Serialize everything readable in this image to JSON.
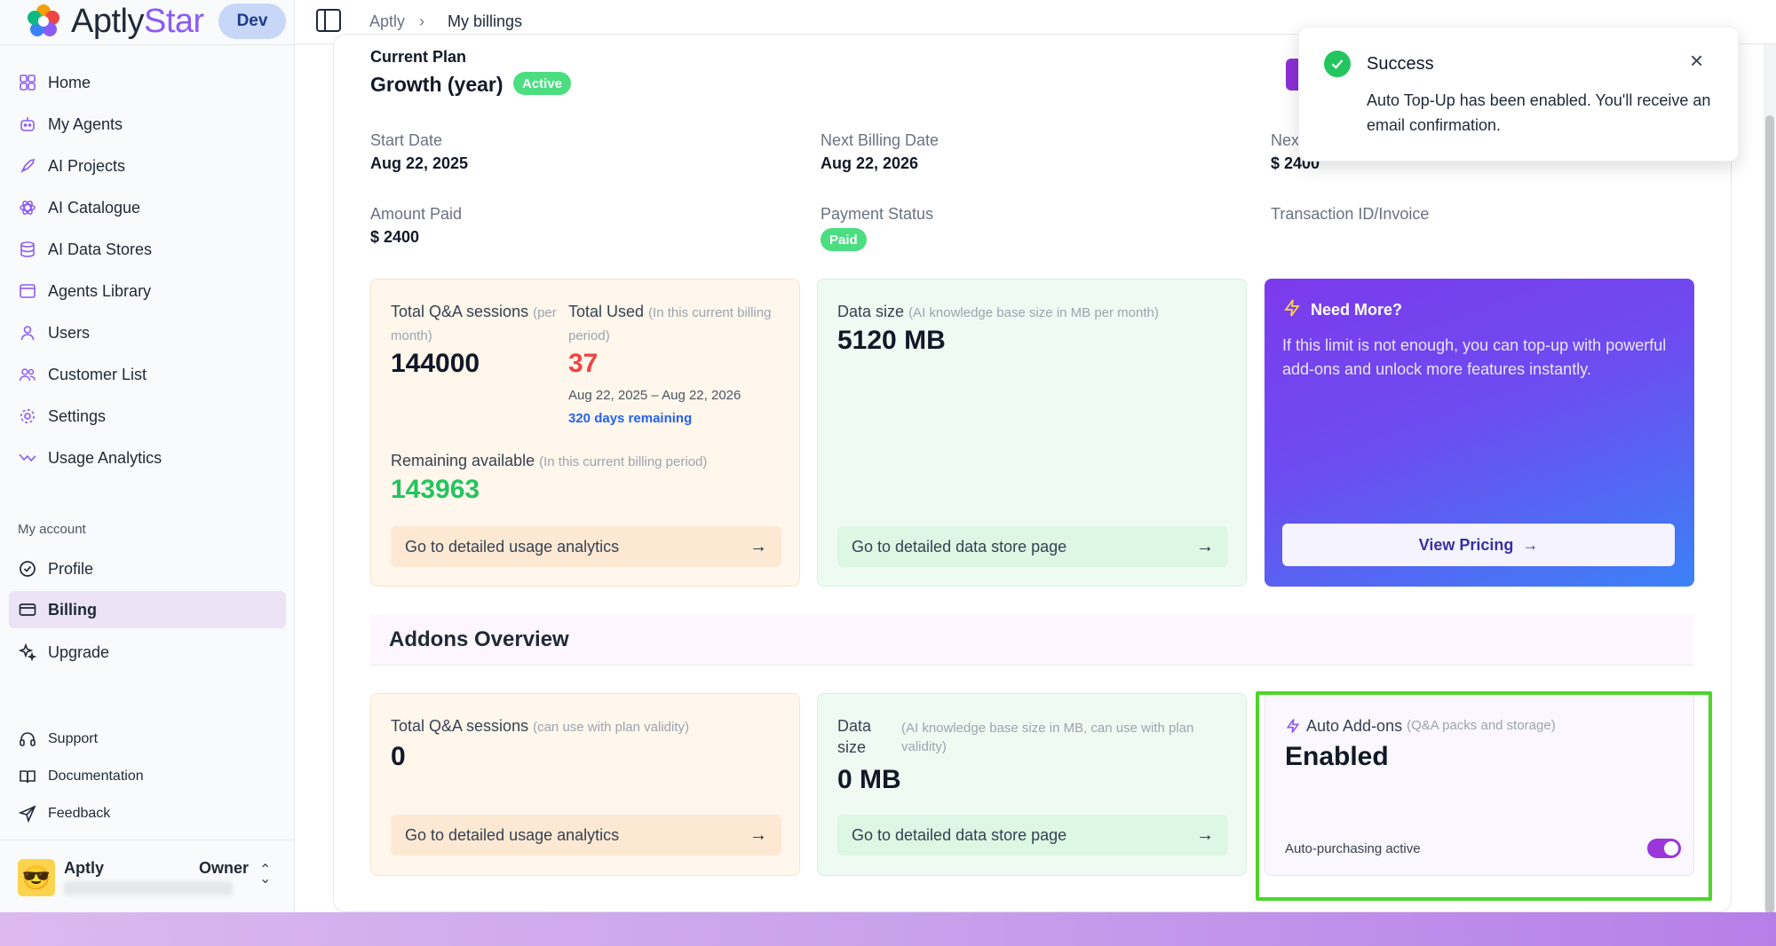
{
  "brand": {
    "name_main": "Aptly",
    "name_star": "Star",
    "env": "Dev"
  },
  "sidebar": {
    "items": [
      {
        "label": "Home",
        "icon": "home-icon"
      },
      {
        "label": "My Agents",
        "icon": "bot-icon"
      },
      {
        "label": "AI Projects",
        "icon": "rocket-icon"
      },
      {
        "label": "AI Catalogue",
        "icon": "atom-icon"
      },
      {
        "label": "AI Data Stores",
        "icon": "database-icon"
      },
      {
        "label": "Agents Library",
        "icon": "library-icon"
      },
      {
        "label": "Users",
        "icon": "user-icon"
      },
      {
        "label": "Customer List",
        "icon": "users-icon"
      },
      {
        "label": "Settings",
        "icon": "gear-icon"
      },
      {
        "label": "Usage Analytics",
        "icon": "trend-icon"
      }
    ],
    "account_label": "My account",
    "account_items": [
      {
        "label": "Profile",
        "icon": "profile-icon"
      },
      {
        "label": "Billing",
        "icon": "card-icon",
        "active": true
      },
      {
        "label": "Upgrade",
        "icon": "sparkle-icon"
      }
    ],
    "footer_items": [
      {
        "label": "Support",
        "icon": "headset-icon"
      },
      {
        "label": "Documentation",
        "icon": "book-icon"
      },
      {
        "label": "Feedback",
        "icon": "send-icon"
      }
    ],
    "user": {
      "name": "Aptly",
      "role": "Owner",
      "avatar": "😎"
    }
  },
  "breadcrumb": {
    "root": "Aptly",
    "sep": "›",
    "current": "My billings"
  },
  "plan": {
    "label": "Current Plan",
    "name": "Growth (year)",
    "status": "Active",
    "start_date_label": "Start Date",
    "start_date": "Aug 22, 2025",
    "next_billing_label": "Next Billing Date",
    "next_billing": "Aug 22, 2026",
    "next_amount_label": "Nex",
    "next_amount": "$ 2400",
    "amount_paid_label": "Amount Paid",
    "amount_paid": "$ 2400",
    "payment_status_label": "Payment Status",
    "payment_status": "Paid",
    "transaction_label": "Transaction ID/Invoice"
  },
  "usage": {
    "sessions_label": "Total Q&A sessions",
    "sessions_hint": "(per month)",
    "sessions_value": "144000",
    "used_label": "Total Used",
    "used_hint": "(In this current billing period)",
    "used_value": "37",
    "period": "Aug 22, 2025 – Aug 22, 2026",
    "days_remaining": "320 days remaining",
    "remaining_label": "Remaining available",
    "remaining_hint": "(In this current billing period)",
    "remaining_value": "143963",
    "link": "Go to detailed usage analytics"
  },
  "datastore": {
    "label": "Data size",
    "hint": "(AI knowledge base size in MB per month)",
    "value": "5120 MB",
    "link": "Go to detailed data store page"
  },
  "need_more": {
    "title": "Need More?",
    "desc": "If this limit is not enough, you can top-up with powerful add-ons and unlock more features instantly.",
    "button": "View Pricing"
  },
  "addons": {
    "title": "Addons Overview",
    "sessions_label": "Total Q&A sessions",
    "sessions_hint": "(can use with plan validity)",
    "sessions_value": "0",
    "sessions_link": "Go to detailed usage analytics",
    "data_label": "Data size",
    "data_hint": "(AI knowledge base size in MB, can use with plan validity)",
    "data_value": "0 MB",
    "data_link": "Go to detailed data store page",
    "auto_label": "Auto Add-ons",
    "auto_hint": "(Q&A packs and storage)",
    "auto_value": "Enabled",
    "auto_status": "Auto-purchasing active",
    "auto_toggle_on": true
  },
  "toast": {
    "title": "Success",
    "message": "Auto Top-Up has been enabled. You'll receive an email confirmation."
  },
  "colors": {
    "accent": "#8b5cf6",
    "success": "#22c55e",
    "used_red": "#ef4444",
    "remaining_green": "#22c55e",
    "highlight": "#4cd62a"
  }
}
